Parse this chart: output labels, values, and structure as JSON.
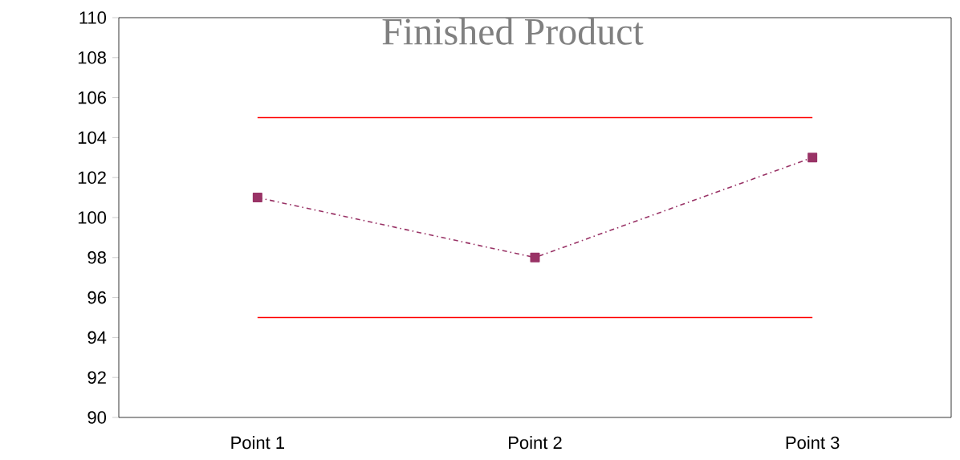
{
  "chart_data": {
    "type": "line",
    "title": "Finished Product",
    "categories": [
      "Point 1",
      "Point 2",
      "Point 3"
    ],
    "ylim": [
      90,
      110
    ],
    "yticks": [
      90,
      92,
      94,
      96,
      98,
      100,
      102,
      104,
      106,
      108,
      110
    ],
    "grid": false,
    "series": [
      {
        "color": "#993366",
        "values": [
          101,
          98,
          103
        ],
        "marker": "square",
        "line_style": "dashed"
      },
      {
        "color": "#ff0000",
        "values": [
          105,
          105,
          105
        ],
        "marker": "none",
        "line_style": "solid"
      },
      {
        "color": "#ff0000",
        "values": [
          95,
          95,
          95
        ],
        "marker": "none",
        "line_style": "solid"
      }
    ]
  }
}
